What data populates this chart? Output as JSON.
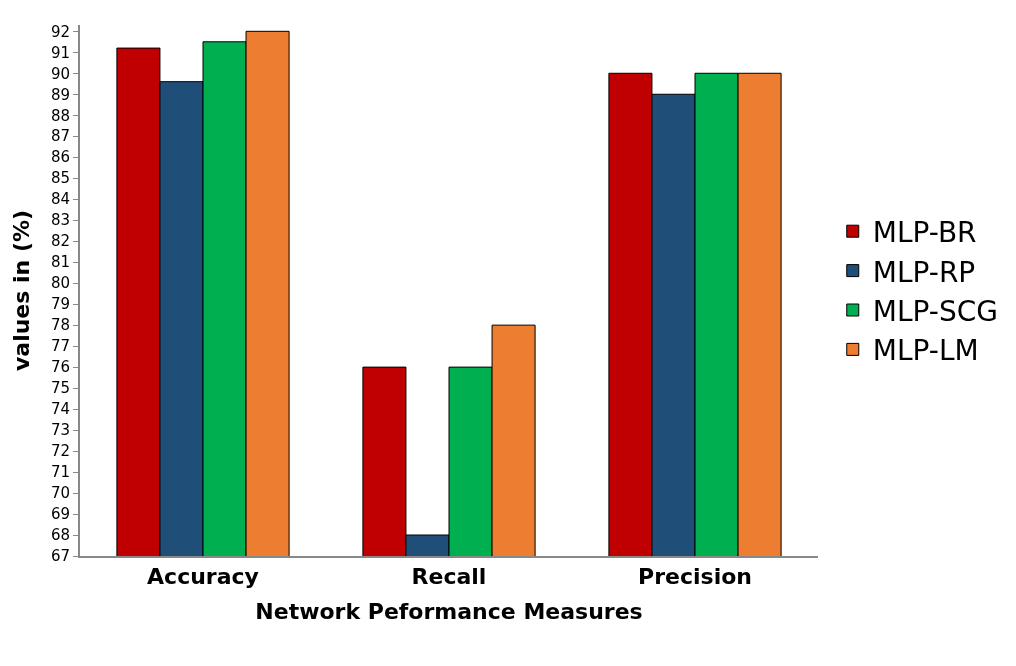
{
  "chart_data": {
    "type": "bar",
    "xlabel": "Network Peformance Measures",
    "ylabel": "values in (%)",
    "categories": [
      "Accuracy",
      "Recall",
      "Precision"
    ],
    "series": [
      {
        "name": "MLP-BR",
        "color": "#c00000",
        "values": [
          91.2,
          76,
          90
        ]
      },
      {
        "name": "MLP-RP",
        "color": "#1f4e79",
        "values": [
          89.6,
          68,
          89
        ]
      },
      {
        "name": "MLP-SCG",
        "color": "#00b050",
        "values": [
          91.5,
          76,
          90
        ]
      },
      {
        "name": "MLP-LM",
        "color": "#ed7d31",
        "values": [
          92,
          78,
          90
        ]
      }
    ],
    "ylim": [
      67,
      92.3
    ],
    "yticks": [
      67,
      68,
      69,
      70,
      71,
      72,
      73,
      74,
      75,
      76,
      77,
      78,
      79,
      80,
      81,
      82,
      83,
      84,
      85,
      86,
      87,
      88,
      89,
      90,
      91,
      92
    ],
    "legend": "right"
  }
}
